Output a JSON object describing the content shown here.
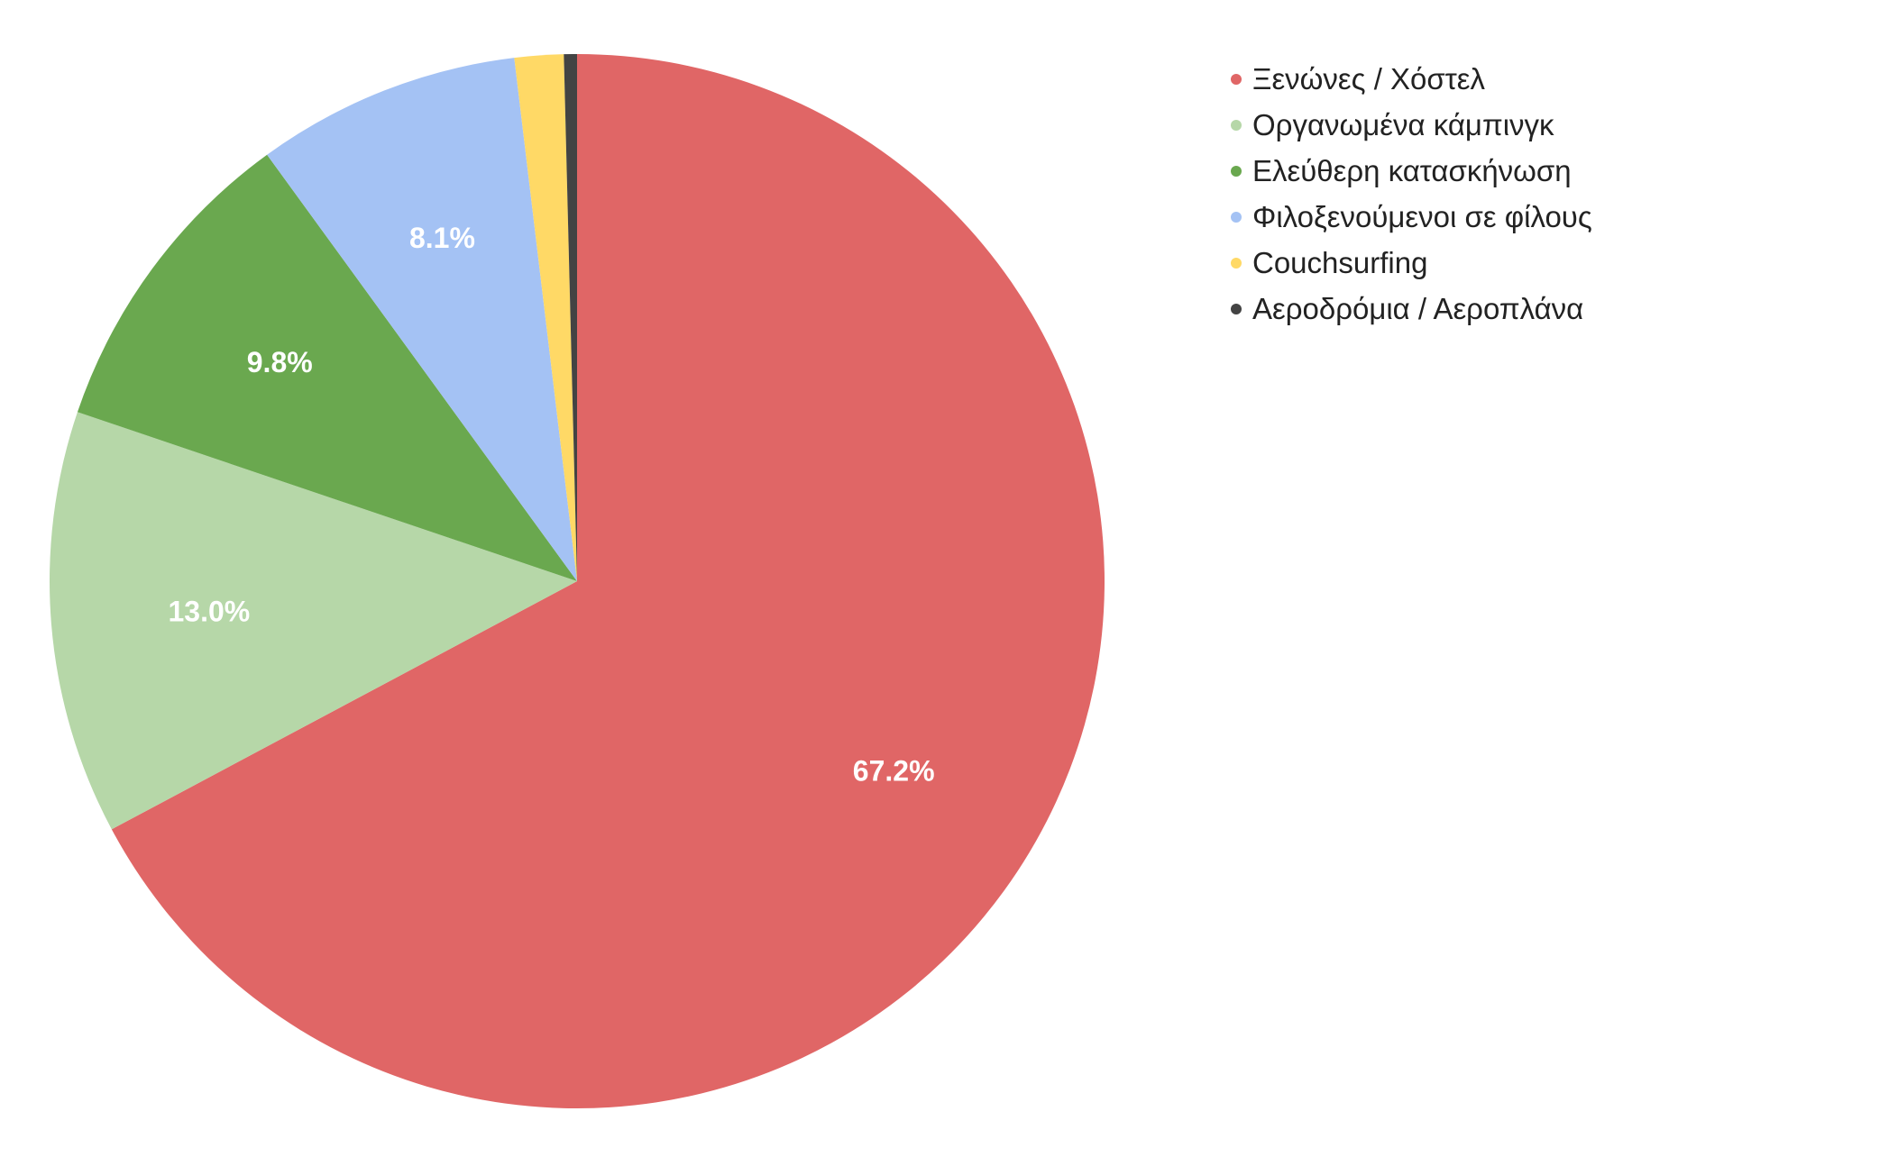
{
  "chart_data": {
    "type": "pie",
    "categories": [
      "Ξενώνες / Χόστελ",
      "Οργανωμένα κάμπινγκ",
      "Ελεύθερη κατασκήνωση",
      "Φιλοξενούμενοι σε φίλους",
      "Couchsurfing",
      "Αεροδρόμια / Αεροπλάνα"
    ],
    "values": [
      67.2,
      13.0,
      9.8,
      8.1,
      1.5,
      0.4
    ],
    "labels": [
      "67.2%",
      "13.0%",
      "9.8%",
      "8.1%",
      "",
      ""
    ],
    "colors": [
      "#e06666",
      "#b6d7a8",
      "#6aa84f",
      "#a4c2f4",
      "#ffd966",
      "#434343"
    ],
    "start_angle_deg": 0,
    "direction": "clockwise",
    "legend_position": "top-right"
  }
}
